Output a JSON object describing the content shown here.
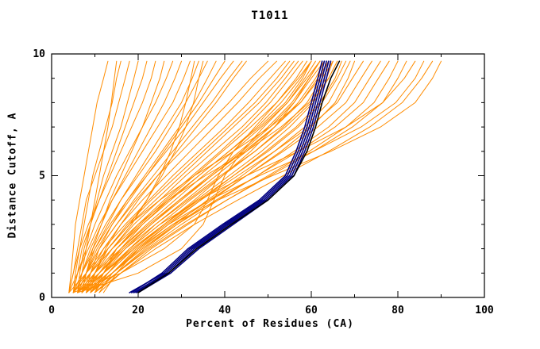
{
  "chart_data": {
    "type": "line",
    "title": "T1011",
    "xlabel": "Percent of Residues (CA)",
    "ylabel": "Distance Cutoff, A",
    "xlim": [
      0,
      100
    ],
    "ylim": [
      0,
      10
    ],
    "xticks": [
      0,
      20,
      40,
      60,
      80,
      100
    ],
    "xminor_step": 10,
    "yticks": [
      0,
      5,
      10
    ],
    "yminor_step": 1,
    "grid": false,
    "legend": "none",
    "colors": {
      "axis": "#000000",
      "background": "#ffffff",
      "orange": "#ff8c00",
      "navy": "#000080",
      "black": "#000000"
    },
    "y_grid": [
      0.2,
      1,
      2,
      3,
      4,
      5,
      6,
      7,
      8,
      9,
      9.7
    ],
    "series_groups": [
      {
        "name": "orange-model-curves",
        "color": "#ff8c00",
        "width": 1,
        "curves": [
          [
            4,
            4.5,
            5,
            5.5,
            6.5,
            7.5,
            8.5,
            9.5,
            10.5,
            12,
            13
          ],
          [
            5,
            5.5,
            6.5,
            7.5,
            8.5,
            9.5,
            11,
            12.5,
            14,
            15,
            16
          ],
          [
            4,
            5,
            6,
            7,
            8,
            10,
            12,
            14,
            15.5,
            17,
            18
          ],
          [
            6,
            6.5,
            7.5,
            9,
            10.5,
            12,
            14,
            16,
            17.5,
            19,
            20
          ],
          [
            5,
            6,
            7,
            9,
            11,
            13,
            15,
            17,
            19,
            21,
            22
          ],
          [
            4,
            5,
            6.5,
            8.5,
            11,
            13.5,
            16,
            18.5,
            21,
            23,
            24
          ],
          [
            7,
            8,
            9.5,
            11.5,
            13.5,
            16,
            18.5,
            21,
            23,
            25,
            26
          ],
          [
            6,
            7,
            8,
            9,
            10,
            11,
            12,
            13,
            13.8,
            14.5,
            15
          ],
          [
            5,
            6,
            8,
            10,
            12.5,
            15,
            18,
            21,
            24,
            26.5,
            28
          ],
          [
            6,
            7,
            9,
            11.5,
            14,
            17,
            20,
            23,
            26,
            28.5,
            30
          ],
          [
            4,
            6,
            8.5,
            11,
            14,
            17.5,
            21,
            24.5,
            28,
            30.5,
            32
          ],
          [
            7,
            8,
            10,
            13,
            16,
            19.5,
            23,
            26.5,
            30,
            32.5,
            34
          ],
          [
            5,
            7,
            9.5,
            12.5,
            16,
            20,
            24,
            27.5,
            31,
            34,
            36
          ],
          [
            6,
            8,
            10.5,
            14,
            17.5,
            21.5,
            25.5,
            29.5,
            33,
            36,
            38
          ],
          [
            8,
            9,
            11,
            14,
            18,
            22,
            26,
            30,
            34,
            37.5,
            40
          ],
          [
            5,
            7,
            10,
            13.5,
            17.5,
            22,
            26.5,
            31,
            35,
            39,
            42
          ],
          [
            6,
            8,
            11,
            15,
            19,
            23.5,
            28,
            32.5,
            37,
            41,
            44
          ],
          [
            9,
            10,
            12.5,
            16,
            20,
            24.5,
            29,
            33.5,
            38,
            42,
            45
          ],
          [
            4,
            8,
            13,
            18,
            22,
            25.5,
            28.5,
            31,
            32.8,
            34,
            35
          ],
          [
            5,
            9,
            14,
            18.5,
            22,
            25,
            27.5,
            29.5,
            31,
            32.2,
            33
          ],
          [
            6,
            8,
            11,
            15,
            19.5,
            24.5,
            30,
            35.5,
            41,
            46,
            50
          ],
          [
            7,
            9,
            12,
            16,
            21,
            26.5,
            32,
            37.5,
            43,
            48,
            52
          ],
          [
            5,
            8,
            12,
            17,
            22.5,
            28,
            34,
            40,
            45.5,
            50.5,
            54
          ],
          [
            8,
            10,
            13,
            17.5,
            23,
            29,
            35,
            41,
            47,
            52,
            55
          ],
          [
            6,
            9,
            13,
            18,
            24,
            30,
            36,
            42,
            48,
            53,
            56
          ],
          [
            7,
            10,
            14,
            19,
            25,
            31,
            37.5,
            44,
            49.5,
            54,
            57
          ],
          [
            5,
            9,
            14,
            20,
            26,
            32.5,
            39,
            45,
            50.5,
            55,
            58
          ],
          [
            8,
            11,
            15,
            20.5,
            26.5,
            33,
            39.5,
            46,
            52,
            56.5,
            59
          ],
          [
            6,
            10,
            15,
            21,
            27.5,
            34,
            41,
            47.5,
            53,
            57.5,
            60
          ],
          [
            9,
            12,
            16,
            21,
            27,
            34,
            41,
            48,
            54,
            58,
            60
          ],
          [
            7,
            11,
            16,
            22,
            28.5,
            35,
            42,
            48.5,
            54.5,
            58.5,
            61
          ],
          [
            8,
            12,
            17,
            23,
            29.5,
            36.5,
            43.5,
            50,
            55.5,
            59.5,
            62
          ],
          [
            6,
            12,
            19,
            26,
            33,
            39.5,
            46,
            51.5,
            56,
            59.5,
            62
          ],
          [
            7,
            11,
            16.5,
            23,
            30,
            37,
            44,
            50.5,
            56,
            60,
            63
          ],
          [
            9,
            13,
            18,
            24,
            31,
            38,
            45,
            51.5,
            57,
            61,
            63
          ],
          [
            6,
            10,
            16,
            22.5,
            29.5,
            37,
            44.5,
            51.5,
            57.5,
            61.5,
            64
          ],
          [
            8,
            10,
            13,
            18,
            25,
            33,
            42,
            50.5,
            57.5,
            62,
            64
          ],
          [
            7,
            12,
            18,
            25,
            32,
            39.5,
            47,
            53.5,
            59,
            62.5,
            65
          ],
          [
            10,
            12,
            15,
            20,
            27,
            35.5,
            45,
            53,
            59.5,
            63.5,
            65
          ],
          [
            8,
            13,
            19,
            26,
            33.5,
            41,
            48.5,
            55,
            60.5,
            64,
            66
          ],
          [
            6,
            11,
            17,
            24,
            31.5,
            39,
            47,
            54,
            60,
            64,
            66
          ],
          [
            9,
            14,
            20,
            27,
            34.5,
            42,
            49.5,
            56.5,
            62,
            65.5,
            67
          ],
          [
            7,
            12,
            18.5,
            26,
            34,
            42,
            50,
            57,
            62.5,
            66,
            68
          ],
          [
            8,
            14,
            21,
            28.5,
            36,
            44,
            51.5,
            58.5,
            64,
            67,
            69
          ],
          [
            10,
            15,
            21.5,
            29,
            37,
            45,
            53,
            60,
            65.5,
            68.5,
            70
          ],
          [
            8,
            13,
            19,
            26.5,
            34.5,
            43,
            51.5,
            59.5,
            66,
            69.5,
            72
          ],
          [
            9,
            14,
            20.5,
            28,
            36.5,
            45,
            53.5,
            61.5,
            68,
            71.5,
            74
          ],
          [
            10,
            15,
            22,
            30,
            38.5,
            47.5,
            56,
            64,
            70,
            73.5,
            76
          ],
          [
            8,
            14,
            21,
            29,
            38,
            47.5,
            57,
            65.5,
            72,
            75.5,
            78
          ],
          [
            11,
            16,
            23,
            31.5,
            40.5,
            50,
            59.5,
            68,
            74.5,
            78,
            80
          ],
          [
            9,
            15,
            22.5,
            31,
            40.5,
            50.5,
            60.5,
            69.5,
            76.5,
            80,
            82
          ],
          [
            10,
            13,
            18,
            25,
            34,
            45,
            57,
            68,
            76.5,
            81.5,
            84
          ],
          [
            11,
            14,
            19.5,
            27,
            36.5,
            48,
            60.5,
            71.5,
            79.5,
            84,
            86
          ],
          [
            10,
            16,
            24,
            33,
            43,
            53.5,
            64,
            73.5,
            81,
            85.5,
            88
          ],
          [
            12,
            15,
            20,
            28,
            38.5,
            51,
            64.5,
            76,
            84,
            88,
            90
          ],
          [
            6,
            20,
            30,
            35,
            37.5,
            40,
            44,
            49,
            54.5,
            59,
            62
          ],
          [
            5,
            16,
            26,
            33,
            36,
            38.5,
            42,
            47,
            52,
            57,
            60
          ]
        ]
      },
      {
        "name": "navy-highlighted-curves",
        "color": "#000080",
        "width": 1.6,
        "curves": [
          [
            18,
            26,
            32,
            40,
            48.5,
            54.5,
            57,
            59,
            60.5,
            62,
            63
          ],
          [
            19,
            26.5,
            32.5,
            40.5,
            49,
            55,
            57.5,
            59.5,
            61,
            62.5,
            63.5
          ],
          [
            19.5,
            27,
            33,
            41,
            49.5,
            55.5,
            58,
            60,
            61.5,
            63,
            64
          ],
          [
            20,
            27.5,
            34,
            42,
            50,
            56,
            58.5,
            60.5,
            62,
            63.5,
            64.5
          ],
          [
            18.5,
            25.5,
            31.5,
            39.5,
            48,
            54,
            56.5,
            58.5,
            60,
            61.5,
            62.5
          ]
        ]
      },
      {
        "name": "black-highlighted-curve",
        "color": "#000000",
        "width": 1.6,
        "curves": [
          [
            20,
            27,
            33.5,
            41.5,
            50,
            56,
            59,
            61,
            62.5,
            64.5,
            66.5
          ]
        ]
      }
    ]
  }
}
